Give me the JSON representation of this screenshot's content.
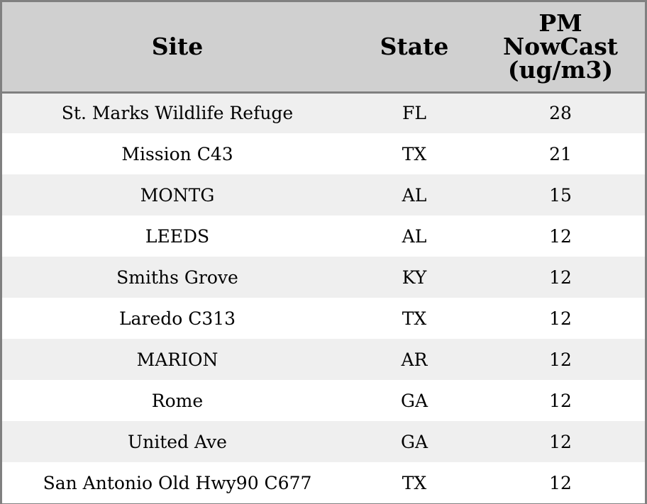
{
  "chart_data": {
    "type": "table",
    "columns": [
      "Site",
      "State",
      "PM NowCast (ug/m3)"
    ],
    "header_lines": {
      "site": [
        "Site"
      ],
      "state": [
        "State"
      ],
      "value": [
        "PM",
        "NowCast",
        "(ug/m3)"
      ]
    },
    "rows": [
      {
        "site": "St. Marks Wildlife Refuge",
        "state": "FL",
        "value": 28
      },
      {
        "site": "Mission C43",
        "state": "TX",
        "value": 21
      },
      {
        "site": "MONTG",
        "state": "AL",
        "value": 15
      },
      {
        "site": "LEEDS",
        "state": "AL",
        "value": 12
      },
      {
        "site": "Smiths Grove",
        "state": "KY",
        "value": 12
      },
      {
        "site": "Laredo C313",
        "state": "TX",
        "value": 12
      },
      {
        "site": "MARION",
        "state": "AR",
        "value": 12
      },
      {
        "site": "Rome",
        "state": "GA",
        "value": 12
      },
      {
        "site": "United Ave",
        "state": "GA",
        "value": 12
      },
      {
        "site": "San Antonio Old Hwy90 C677",
        "state": "TX",
        "value": 12
      }
    ],
    "colors": {
      "header_bg": "#d0d0d0",
      "row_alt_bg": "#efefef",
      "row_bg": "#ffffff",
      "border": "#808080"
    }
  }
}
